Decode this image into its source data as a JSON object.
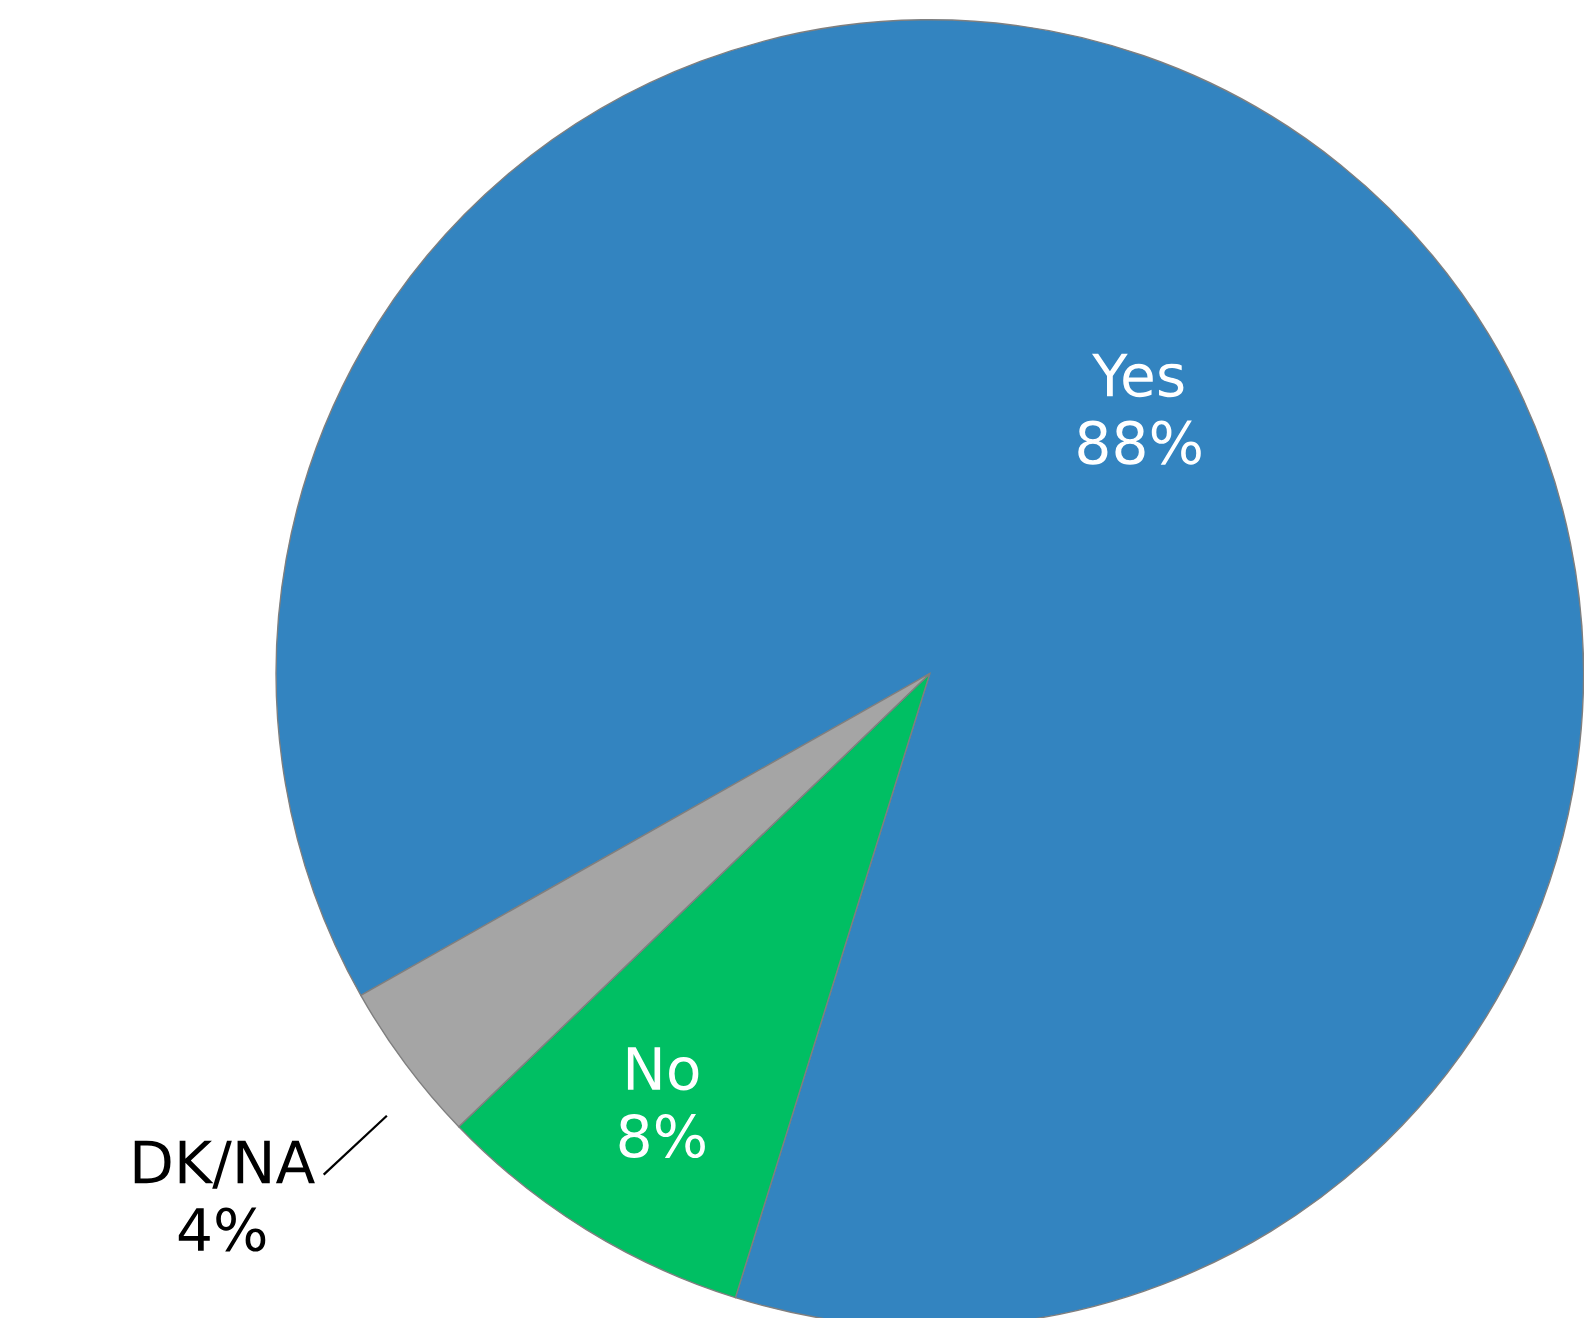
{
  "chart_data": {
    "type": "pie",
    "categories": [
      "Yes",
      "No",
      "DK/NA"
    ],
    "values": [
      88,
      8,
      4
    ],
    "colors": [
      "#3384c0",
      "#00bf63",
      "#a5a5a5"
    ],
    "value_labels": [
      "88%",
      "8%",
      "4%"
    ],
    "legend": false
  }
}
